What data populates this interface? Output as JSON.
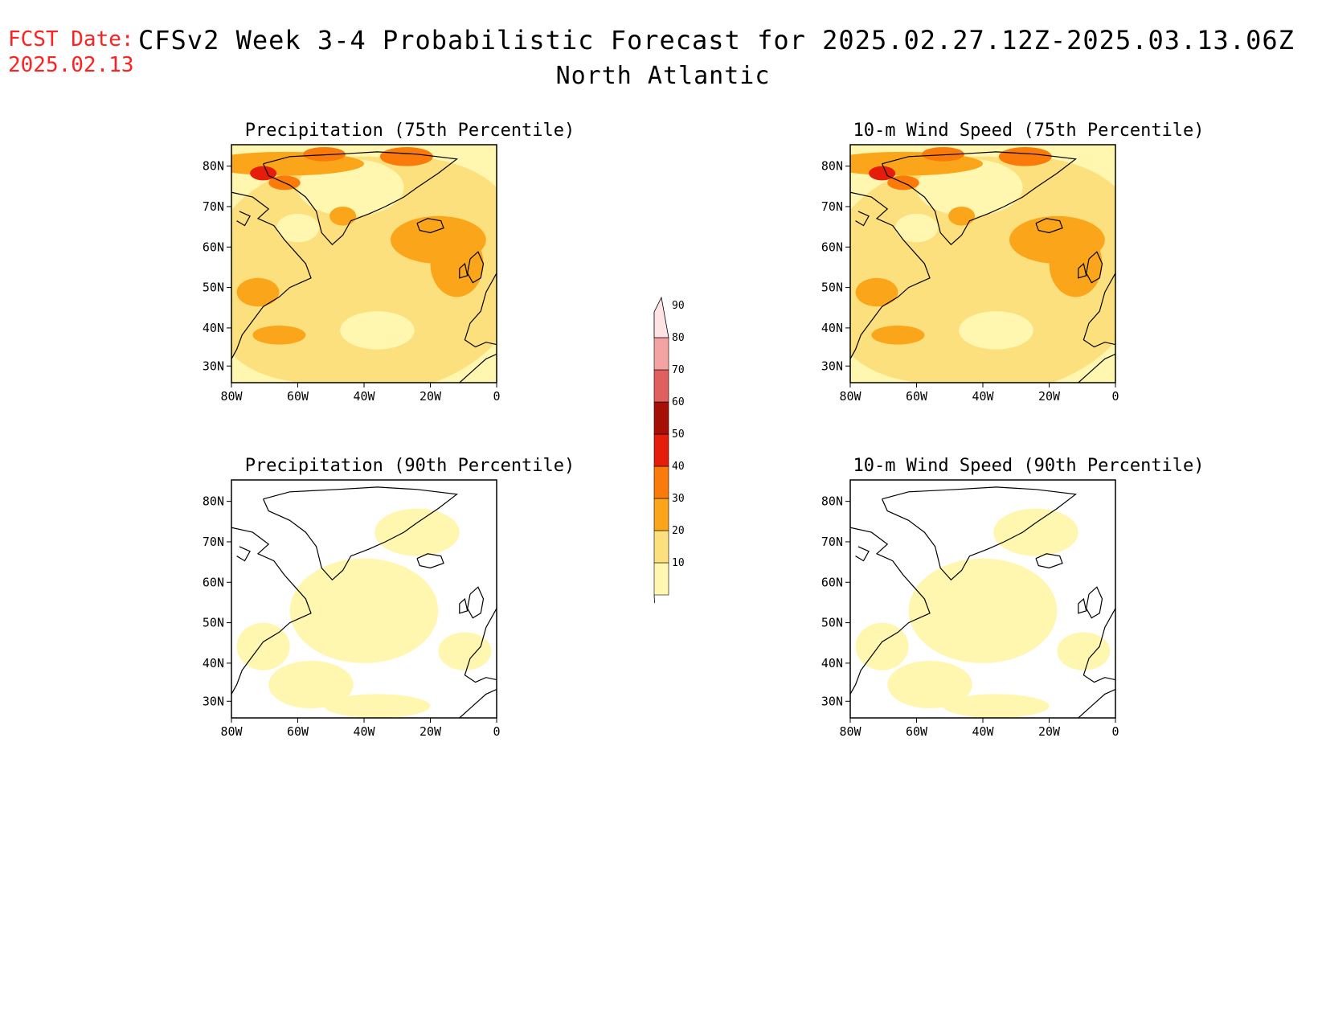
{
  "header": {
    "fcst_label": "FCST Date:",
    "fcst_date": "2025.02.13",
    "title": "CFSv2 Week 3-4 Probabilistic Forecast for 2025.02.27.12Z-2025.03.13.06Z",
    "region": "North Atlantic"
  },
  "axes": {
    "lon_labels": [
      "80W",
      "60W",
      "40W",
      "20W",
      "0"
    ],
    "lat_labels": [
      "80N",
      "70N",
      "60N",
      "50N",
      "40N",
      "30N"
    ]
  },
  "panels": [
    {
      "title": "Precipitation (75th Percentile)",
      "intensity": "high"
    },
    {
      "title": "10-m Wind Speed (75th Percentile)",
      "intensity": "high"
    },
    {
      "title": "Precipitation (90th Percentile)",
      "intensity": "low"
    },
    {
      "title": "10-m Wind Speed (90th Percentile)",
      "intensity": "low"
    }
  ],
  "legend": {
    "levels": [
      "10",
      "20",
      "30",
      "40",
      "50",
      "60",
      "70",
      "80",
      "90"
    ],
    "colors": [
      "#fff7b0",
      "#fde07e",
      "#fba61a",
      "#fb7b0a",
      "#e51d0a",
      "#a50f06",
      "#e05f5f",
      "#f4a3a3",
      "#fde3e3"
    ]
  }
}
